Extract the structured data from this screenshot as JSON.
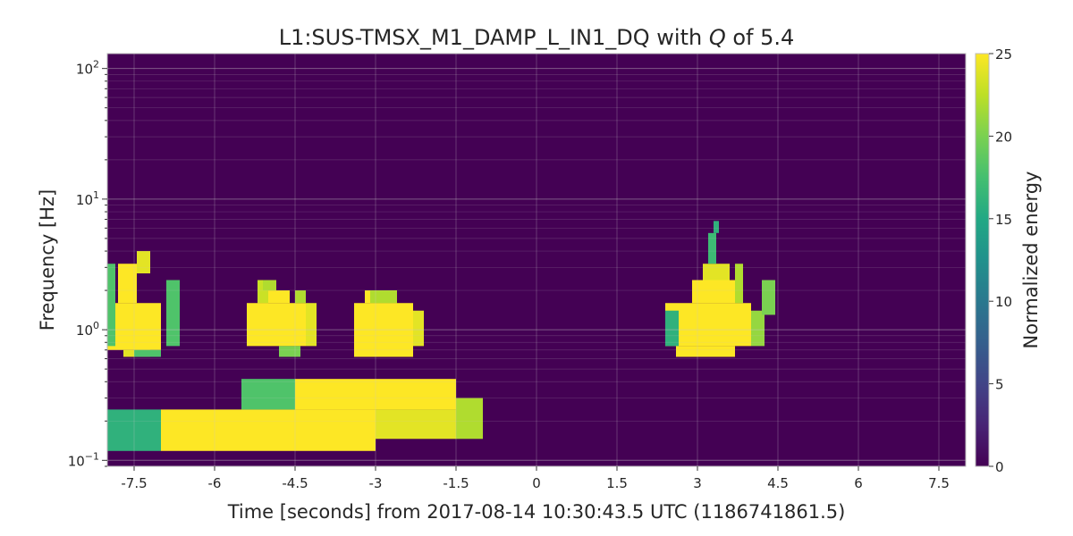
{
  "chart_data": {
    "type": "heatmap",
    "title": "L1:SUS-TMSX_M1_DAMP_L_IN1_DQ with Q of 5.4",
    "title_parts": {
      "prefix": "L1:SUS-TMSX_M1_DAMP_L_IN1_DQ with ",
      "italic": "Q",
      "suffix": " of 5.4"
    },
    "xlabel": "Time [seconds] from 2017-08-14 10:30:43.5 UTC (1186741861.5)",
    "ylabel": "Frequency [Hz]",
    "colorbar_label": "Normalized energy",
    "xlim": [
      -8,
      8
    ],
    "ylim": [
      0.09,
      130
    ],
    "y_scale": "log",
    "clim": [
      0,
      25
    ],
    "colormap": "viridis",
    "grid": true,
    "x_ticks": [
      -7.5,
      -6,
      -4.5,
      -3,
      -1.5,
      0,
      1.5,
      3,
      4.5,
      6,
      7.5
    ],
    "x_tick_labels": [
      "-7.5",
      "-6",
      "-4.5",
      "-3",
      "-1.5",
      "0",
      "1.5",
      "3",
      "4.5",
      "6",
      "7.5"
    ],
    "y_ticks": [
      {
        "value": 0.1,
        "base": "10",
        "exp": "−1"
      },
      {
        "value": 1,
        "base": "10",
        "exp": "0"
      },
      {
        "value": 10,
        "base": "10",
        "exp": "1"
      },
      {
        "value": 100,
        "base": "10",
        "exp": "2"
      }
    ],
    "colorbar_ticks": [
      "0",
      "5",
      "10",
      "15",
      "20",
      "25"
    ],
    "colorbar_tick_values": [
      0,
      5,
      10,
      15,
      20,
      25
    ],
    "tiles": [
      {
        "t0": -8.0,
        "t1": -7.0,
        "f0": 0.118,
        "f1": 0.245,
        "e": 16
      },
      {
        "t0": -7.0,
        "t1": -3.0,
        "f0": 0.118,
        "f1": 0.245,
        "e": 25
      },
      {
        "t0": -5.5,
        "t1": -4.5,
        "f0": 0.245,
        "f1": 0.42,
        "e": 18
      },
      {
        "t0": -4.5,
        "t1": -1.5,
        "f0": 0.245,
        "f1": 0.42,
        "e": 25
      },
      {
        "t0": -3.0,
        "t1": -1.5,
        "f0": 0.146,
        "f1": 0.245,
        "e": 24
      },
      {
        "t0": -1.5,
        "t1": -1.0,
        "f0": 0.146,
        "f1": 0.3,
        "e": 22
      },
      {
        "t0": -8.0,
        "t1": -7.0,
        "f0": 0.7,
        "f1": 1.6,
        "e": 25
      },
      {
        "t0": -7.8,
        "t1": -7.45,
        "f0": 1.6,
        "f1": 3.2,
        "e": 25
      },
      {
        "t0": -7.45,
        "t1": -7.2,
        "f0": 2.7,
        "f1": 4.0,
        "e": 24
      },
      {
        "t0": -7.7,
        "t1": -7.2,
        "f0": 0.62,
        "f1": 0.7,
        "e": 24
      },
      {
        "t0": -7.5,
        "t1": -7.0,
        "f0": 0.62,
        "f1": 0.7,
        "e": 18
      },
      {
        "t0": -6.9,
        "t1": -6.65,
        "f0": 0.75,
        "f1": 2.4,
        "e": 18
      },
      {
        "t0": -8.0,
        "t1": -7.85,
        "f0": 0.75,
        "f1": 3.2,
        "e": 18
      },
      {
        "t0": -5.4,
        "t1": -4.3,
        "f0": 0.75,
        "f1": 1.6,
        "e": 25
      },
      {
        "t0": -5.2,
        "t1": -4.6,
        "f0": 1.6,
        "f1": 2.0,
        "e": 25
      },
      {
        "t0": -5.2,
        "t1": -5.0,
        "f0": 1.6,
        "f1": 2.4,
        "e": 23
      },
      {
        "t0": -5.1,
        "t1": -4.85,
        "f0": 2.0,
        "f1": 2.4,
        "e": 22
      },
      {
        "t0": -4.5,
        "t1": -4.3,
        "f0": 1.6,
        "f1": 2.0,
        "e": 22
      },
      {
        "t0": -4.8,
        "t1": -4.4,
        "f0": 0.62,
        "f1": 0.75,
        "e": 20
      },
      {
        "t0": -4.3,
        "t1": -4.1,
        "f0": 0.75,
        "f1": 1.6,
        "e": 24
      },
      {
        "t0": -3.4,
        "t1": -2.3,
        "f0": 0.62,
        "f1": 1.6,
        "e": 25
      },
      {
        "t0": -3.2,
        "t1": -2.6,
        "f0": 1.6,
        "f1": 2.0,
        "e": 25
      },
      {
        "t0": -3.1,
        "t1": -2.6,
        "f0": 1.6,
        "f1": 2.0,
        "e": 22
      },
      {
        "t0": -2.3,
        "t1": -2.1,
        "f0": 0.75,
        "f1": 1.4,
        "e": 24
      },
      {
        "t0": 2.4,
        "t1": 4.0,
        "f0": 0.75,
        "f1": 1.6,
        "e": 25
      },
      {
        "t0": 2.6,
        "t1": 3.7,
        "f0": 0.62,
        "f1": 0.75,
        "e": 25
      },
      {
        "t0": 2.9,
        "t1": 3.7,
        "f0": 1.6,
        "f1": 2.4,
        "e": 25
      },
      {
        "t0": 3.1,
        "t1": 3.6,
        "f0": 2.4,
        "f1": 3.2,
        "e": 24
      },
      {
        "t0": 3.2,
        "t1": 3.35,
        "f0": 3.2,
        "f1": 5.5,
        "e": 17
      },
      {
        "t0": 3.3,
        "t1": 3.4,
        "f0": 5.5,
        "f1": 6.8,
        "e": 16
      },
      {
        "t0": 2.4,
        "t1": 2.65,
        "f0": 0.75,
        "f1": 1.4,
        "e": 16
      },
      {
        "t0": 3.7,
        "t1": 3.85,
        "f0": 1.6,
        "f1": 3.2,
        "e": 22
      },
      {
        "t0": 4.0,
        "t1": 4.25,
        "f0": 0.75,
        "f1": 1.4,
        "e": 21
      },
      {
        "t0": 4.2,
        "t1": 4.45,
        "f0": 1.3,
        "f1": 2.4,
        "e": 20
      }
    ]
  }
}
